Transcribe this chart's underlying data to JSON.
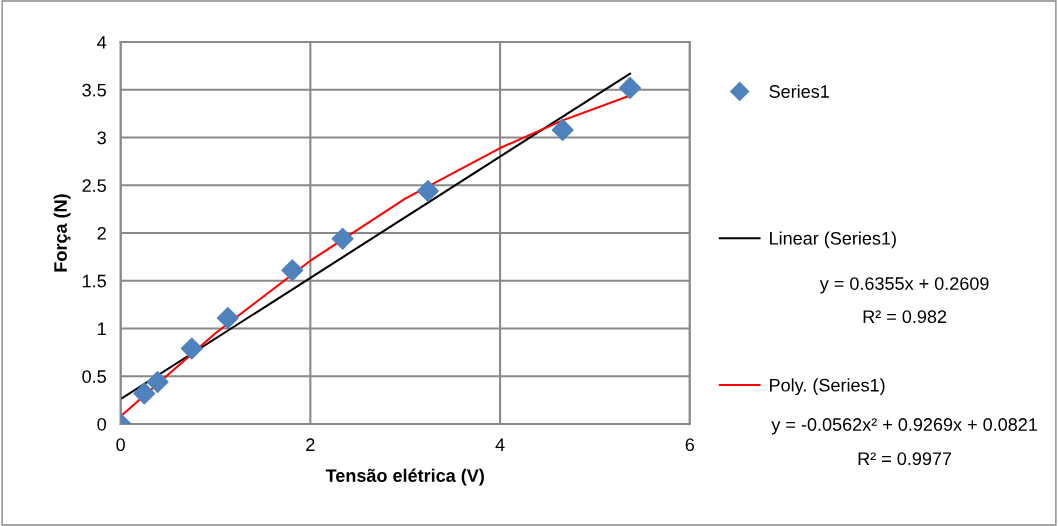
{
  "chart_data": {
    "type": "scatter",
    "xlabel": "Tensão elétrica (V)",
    "ylabel": "Força (N)",
    "series": [
      {
        "name": "Series1",
        "color": "#4f81bd",
        "marker": "diamond",
        "x": [
          0,
          0.25,
          0.39,
          0.75,
          1.13,
          1.81,
          2.34,
          3.24,
          4.66,
          5.37
        ],
        "values": [
          0,
          0.32,
          0.44,
          0.79,
          1.11,
          1.61,
          1.94,
          2.44,
          3.08,
          3.52
        ]
      },
      {
        "name": "Linear (Series1)",
        "type": "line",
        "color": "#000000",
        "x": [
          0,
          5.37
        ],
        "values": [
          0.26,
          3.67
        ]
      },
      {
        "name": "Poly. (Series1)",
        "type": "line",
        "color": "#ff0000",
        "x": [
          0,
          1,
          2,
          3,
          4,
          4.66,
          5.37
        ],
        "values": [
          0.08,
          0.95,
          1.71,
          2.36,
          2.89,
          3.18,
          3.44
        ]
      }
    ],
    "xlim": [
      0,
      6
    ],
    "xticks": [
      0,
      2,
      4,
      6
    ],
    "ylim": [
      0,
      4
    ],
    "yticks": [
      0,
      0.5,
      1,
      1.5,
      2,
      2.5,
      3,
      3.5,
      4
    ],
    "grid": true,
    "legend": "right",
    "annotations": [
      "y = 0.6355x + 0.2609",
      "R² = 0.982",
      "y = -0.0562x² + 0.9269x + 0.0821",
      "R² = 0.9977"
    ]
  }
}
